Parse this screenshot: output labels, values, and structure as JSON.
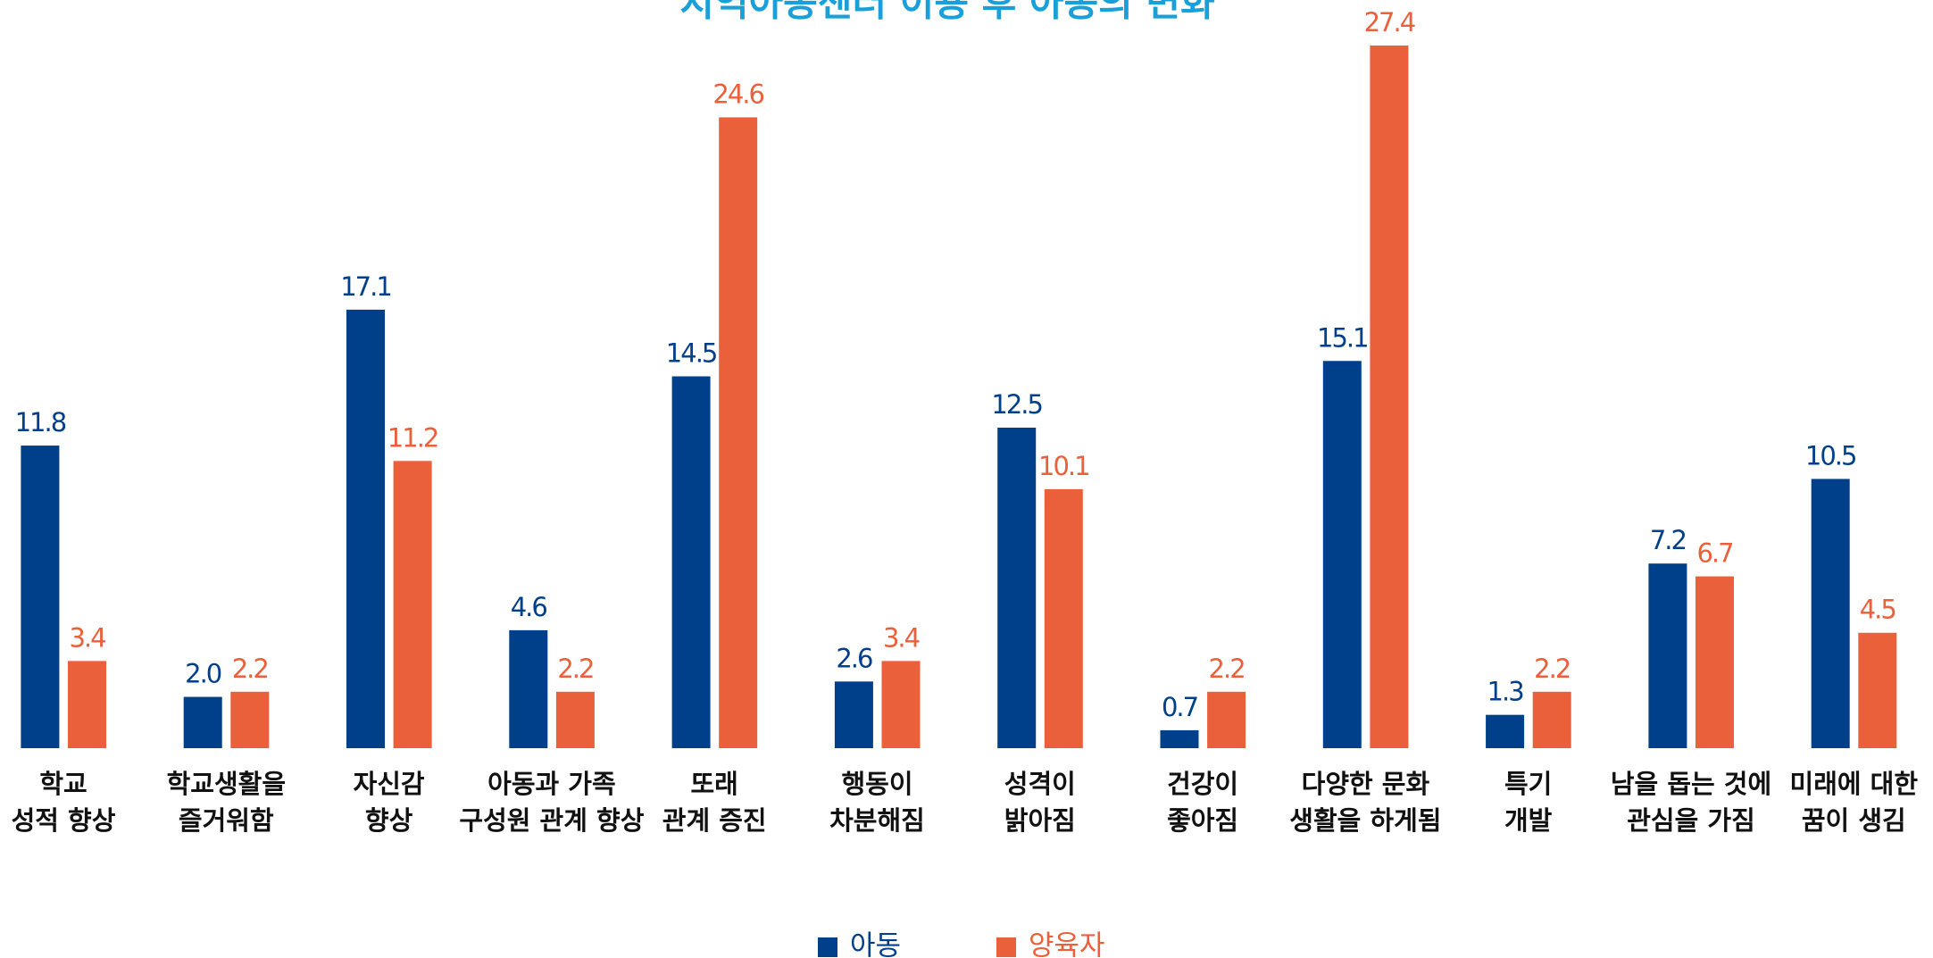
{
  "chart_data": {
    "type": "bar",
    "title": "지역아동센터 이용 후 아동의 변화",
    "categories": [
      [
        "학교",
        "성적 향상"
      ],
      [
        "학교생활을",
        "즐거워함"
      ],
      [
        "자신감",
        "향상"
      ],
      [
        "아동과 가족",
        "구성원 관계 향상"
      ],
      [
        "또래",
        "관계 증진"
      ],
      [
        "행동이",
        "차분해짐"
      ],
      [
        "성격이",
        "밝아짐"
      ],
      [
        "건강이",
        "좋아짐"
      ],
      [
        "다양한 문화",
        "생활을 하게됨"
      ],
      [
        "특기",
        "개발"
      ],
      [
        "남을 돕는 것에",
        "관심을 가짐"
      ],
      [
        "미래에 대한",
        "꿈이 생김"
      ]
    ],
    "series": [
      {
        "name": "아동",
        "color": "#003f8a",
        "values": [
          11.8,
          2.0,
          17.1,
          4.6,
          14.5,
          2.6,
          12.5,
          0.7,
          15.1,
          1.3,
          7.2,
          10.5
        ],
        "value_labels": [
          "11.8",
          "2.0",
          "17.1",
          "4.6",
          "14.5",
          "2.6",
          "12.5",
          "0.7",
          "15.1",
          "1.3",
          "7.2",
          "10.5"
        ]
      },
      {
        "name": "양육자",
        "color": "#ea603a",
        "values": [
          3.4,
          2.2,
          11.2,
          2.2,
          24.6,
          3.4,
          10.1,
          2.2,
          27.4,
          2.2,
          6.7,
          4.5
        ],
        "value_labels": [
          "3.4",
          "2.2",
          "11.2",
          "2.2",
          "24.6",
          "3.4",
          "10.1",
          "2.2",
          "27.4",
          "2.2",
          "6.7",
          "4.5"
        ]
      }
    ]
  }
}
